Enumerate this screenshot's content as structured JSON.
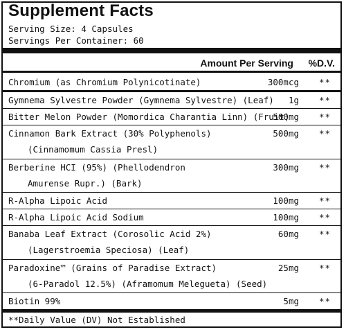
{
  "title": "Supplement Facts",
  "serving_size": "Serving Size: 4 Capsules",
  "servings_per_container": "Servings Per Container: 60",
  "header": {
    "amount": "Amount Per Serving",
    "dv": "%D.V."
  },
  "rows": [
    {
      "name": "Chromium (as Chromium Polynicotinate)",
      "sub": "",
      "amount": "300mcg",
      "dv": "**"
    },
    {
      "name": "Gymnema Sylvestre Powder (Gymnema Sylvestre) (Leaf)",
      "sub": "",
      "amount": "1g",
      "dv": "**"
    },
    {
      "name": "Bitter Melon Powder (Momordica Charantia Linn) (Fruit)",
      "sub": "",
      "amount": "500mg",
      "dv": "**"
    },
    {
      "name": "Cinnamon Bark Extract (30% Polyphenols)",
      "sub": "(Cinnamomum Cassia Presl)",
      "amount": "500mg",
      "dv": "**"
    },
    {
      "name": "Berberine HCI (95%) (Phellodendron",
      "sub": "Amurense Rupr.) (Bark)",
      "amount": "300mg",
      "dv": "**"
    },
    {
      "name": "R-Alpha Lipoic Acid",
      "sub": "",
      "amount": "100mg",
      "dv": "**"
    },
    {
      "name": "R-Alpha Lipoic Acid Sodium",
      "sub": "",
      "amount": "100mg",
      "dv": "**"
    },
    {
      "name": "Banaba Leaf Extract (Corosolic Acid 2%)",
      "sub": "(Lagerstroemia Speciosa) (Leaf)",
      "amount": "60mg",
      "dv": "**"
    },
    {
      "name": "Paradoxine™ (Grains of Paradise Extract)",
      "sub": "(6-Paradol 12.5%) (Aframomum Melegueta) (Seed)",
      "amount": "25mg",
      "dv": "**"
    },
    {
      "name": "Biotin 99%",
      "sub": "",
      "amount": "5mg",
      "dv": "**"
    }
  ],
  "footnote": "**Daily Value (DV) Not Established"
}
